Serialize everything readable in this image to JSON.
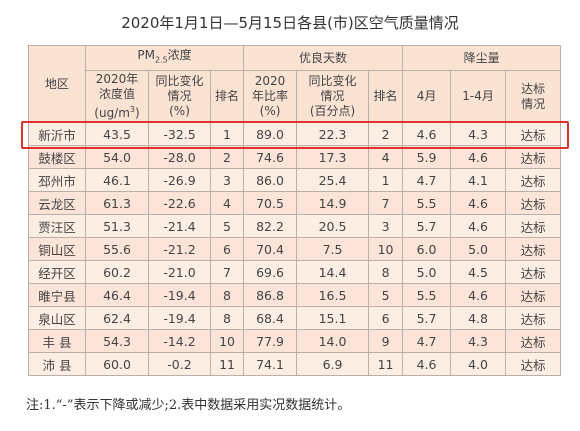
{
  "title": "2020年1月1日—5月15日各县(市)区空气质量情况",
  "table": {
    "header": {
      "region": "地区",
      "pm_group": {
        "prefix": "PM",
        "sub": "2.5",
        "suffix": "浓度"
      },
      "good_group": "优良天数",
      "dust_group": "降尘量",
      "columns": [
        {
          "lines": [
            "2020年",
            "浓度值"
          ],
          "unit": "(ug/m",
          "unit_sup": "3",
          "unit_end": ")"
        },
        {
          "lines": [
            "同比变化",
            "情况",
            "(%)"
          ]
        },
        {
          "lines": [
            "排名"
          ]
        },
        {
          "lines": [
            "2020",
            "年比率",
            "(%)"
          ]
        },
        {
          "lines": [
            "同比变化",
            "情况",
            "(百分点)"
          ]
        },
        {
          "lines": [
            "排名"
          ]
        },
        {
          "lines": [
            "4月"
          ]
        },
        {
          "lines": [
            "1-4月"
          ]
        },
        {
          "lines": [
            "达标",
            "情况"
          ]
        }
      ]
    },
    "rows": [
      [
        "新沂市",
        "43.5",
        "-32.5",
        "1",
        "89.0",
        "22.3",
        "2",
        "4.6",
        "4.3",
        "达标"
      ],
      [
        "鼓楼区",
        "54.0",
        "-28.0",
        "2",
        "74.6",
        "17.3",
        "4",
        "5.9",
        "4.6",
        "达标"
      ],
      [
        "邳州市",
        "46.1",
        "-26.9",
        "3",
        "86.0",
        "25.4",
        "1",
        "4.7",
        "4.1",
        "达标"
      ],
      [
        "云龙区",
        "61.3",
        "-22.6",
        "4",
        "70.5",
        "14.9",
        "7",
        "5.5",
        "4.6",
        "达标"
      ],
      [
        "贾汪区",
        "51.3",
        "-21.4",
        "5",
        "82.2",
        "20.5",
        "3",
        "5.7",
        "4.6",
        "达标"
      ],
      [
        "铜山区",
        "55.6",
        "-21.2",
        "6",
        "70.4",
        "7.5",
        "10",
        "6.0",
        "5.0",
        "达标"
      ],
      [
        "经开区",
        "60.2",
        "-21.0",
        "7",
        "69.6",
        "14.4",
        "8",
        "5.0",
        "4.5",
        "达标"
      ],
      [
        "睢宁县",
        "46.4",
        "-19.4",
        "8",
        "86.8",
        "16.5",
        "5",
        "5.5",
        "4.6",
        "达标"
      ],
      [
        "泉山区",
        "62.4",
        "-19.4",
        "8",
        "68.4",
        "15.1",
        "6",
        "5.7",
        "4.8",
        "达标"
      ],
      [
        "丰 县",
        "54.3",
        "-14.2",
        "10",
        "77.9",
        "14.0",
        "9",
        "4.7",
        "4.3",
        "达标"
      ],
      [
        "沛 县",
        "60.0",
        "-0.2",
        "11",
        "74.1",
        "6.9",
        "11",
        "4.6",
        "4.0",
        "达标"
      ]
    ]
  },
  "note": "注:1.“-”表示下降或减少;2.表中数据采用实况数据统计。"
}
